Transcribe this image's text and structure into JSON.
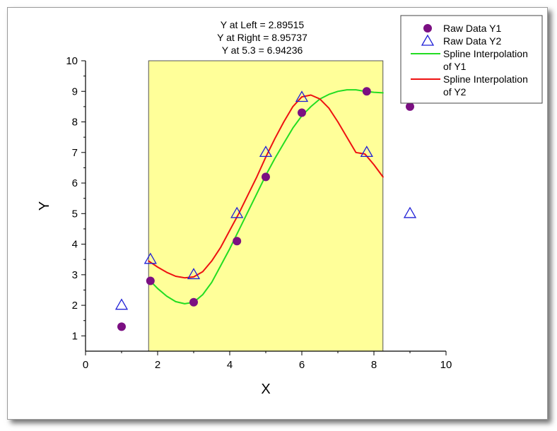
{
  "chart_data": {
    "type": "scatter",
    "xlabel": "X",
    "ylabel": "Y",
    "xlim": [
      0,
      10
    ],
    "ylim": [
      0.5,
      10
    ],
    "xticks": [
      0,
      2,
      4,
      6,
      8,
      10
    ],
    "yticks": [
      1,
      2,
      3,
      4,
      5,
      6,
      7,
      8,
      9,
      10
    ],
    "grid": false,
    "legend_position": "top-right",
    "highlight_range_x": [
      1.75,
      8.25
    ],
    "highlight_color": "#ffff99",
    "annotations": [
      "Y at Left = 2.89515",
      "Y at Right = 8.95737",
      "Y at 5.3 = 6.94236"
    ],
    "series": [
      {
        "name": "Raw Data Y1",
        "kind": "scatter",
        "marker": "circle",
        "color": "#7b0f82",
        "x": [
          1,
          1.8,
          3,
          4.2,
          5,
          6,
          7.8,
          9
        ],
        "y": [
          1.3,
          2.8,
          2.1,
          4.1,
          6.2,
          8.3,
          9.0,
          8.5
        ]
      },
      {
        "name": "Raw Data Y2",
        "kind": "scatter",
        "marker": "triangle-open",
        "color": "#1f1fd6",
        "x": [
          1,
          1.8,
          3,
          4.2,
          5,
          6,
          7.8,
          9
        ],
        "y": [
          2.0,
          3.5,
          3.0,
          5.0,
          7.0,
          8.8,
          7.0,
          5.0
        ]
      },
      {
        "name": "Spline Interpolation of Y1",
        "legend_lines": [
          "Spline Interpolation",
          "of Y1"
        ],
        "kind": "line",
        "color": "#22dd22",
        "x": [
          1.75,
          2.0,
          2.25,
          2.5,
          2.75,
          3.0,
          3.25,
          3.5,
          3.75,
          4.0,
          4.25,
          4.5,
          4.75,
          5.0,
          5.25,
          5.5,
          5.75,
          6.0,
          6.25,
          6.5,
          6.75,
          7.0,
          7.25,
          7.5,
          7.75,
          8.0,
          8.25
        ],
        "y": [
          2.85,
          2.55,
          2.3,
          2.12,
          2.05,
          2.1,
          2.35,
          2.75,
          3.3,
          3.85,
          4.45,
          5.05,
          5.65,
          6.25,
          6.8,
          7.3,
          7.8,
          8.2,
          8.5,
          8.75,
          8.9,
          9.0,
          9.05,
          9.05,
          9.0,
          8.97,
          8.95
        ]
      },
      {
        "name": "Spline Interpolation of Y2",
        "legend_lines": [
          "Spline Interpolation",
          "of Y2"
        ],
        "kind": "line",
        "color": "#ee1111",
        "x": [
          1.75,
          2.0,
          2.25,
          2.5,
          2.75,
          3.0,
          3.25,
          3.5,
          3.75,
          4.0,
          4.25,
          4.5,
          4.75,
          5.0,
          5.25,
          5.5,
          5.75,
          6.0,
          6.25,
          6.5,
          6.75,
          7.0,
          7.25,
          7.5,
          7.75,
          8.0,
          8.25
        ],
        "y": [
          3.45,
          3.25,
          3.08,
          2.95,
          2.9,
          2.93,
          3.1,
          3.45,
          3.9,
          4.45,
          5.0,
          5.6,
          6.2,
          6.85,
          7.45,
          8.0,
          8.5,
          8.82,
          8.88,
          8.75,
          8.45,
          8.0,
          7.5,
          7.0,
          6.95,
          6.6,
          6.2
        ]
      }
    ]
  }
}
